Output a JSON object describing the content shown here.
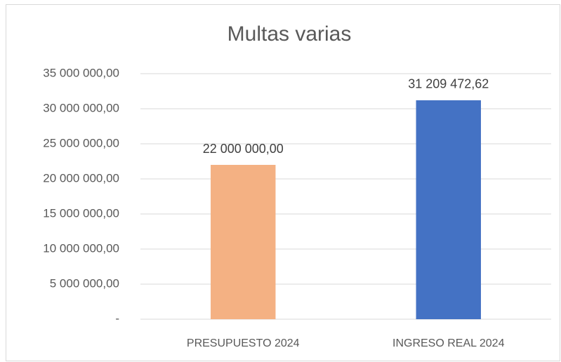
{
  "chart_data": {
    "type": "bar",
    "title": "Multas varias",
    "categories": [
      "PRESUPUESTO 2024",
      "INGRESO REAL 2024"
    ],
    "values": [
      22000000,
      31209472.62
    ],
    "value_labels": [
      "22 000 000,00",
      "31 209 472,62"
    ],
    "colors": [
      "#f4b183",
      "#4472c4"
    ],
    "ylim": [
      0,
      35000000
    ],
    "yticks": [
      {
        "value": 0,
        "label": "-"
      },
      {
        "value": 5000000,
        "label": "5 000 000,00"
      },
      {
        "value": 10000000,
        "label": "10 000 000,00"
      },
      {
        "value": 15000000,
        "label": "15 000 000,00"
      },
      {
        "value": 20000000,
        "label": "20 000 000,00"
      },
      {
        "value": 25000000,
        "label": "25 000 000,00"
      },
      {
        "value": 30000000,
        "label": "30 000 000,00"
      },
      {
        "value": 35000000,
        "label": "35 000 000,00"
      }
    ],
    "grid": true
  }
}
